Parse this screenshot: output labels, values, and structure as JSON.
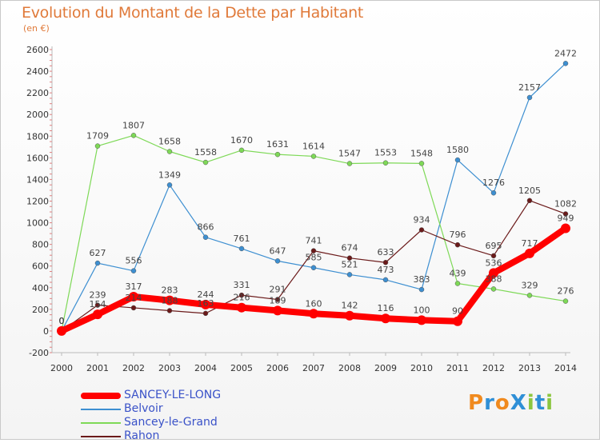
{
  "title": "Evolution du Montant de la Dette par Habitant",
  "subtitle": "(en €)",
  "logo": {
    "text": "ProXiti",
    "letters": [
      "P",
      "r",
      "o",
      "X",
      "i",
      "t",
      "i"
    ],
    "colors": [
      "#f08a1e",
      "#2f8fd6",
      "#f08a1e",
      "#2f8fd6",
      "#8cc63f",
      "#2f8fd6",
      "#8cc63f"
    ]
  },
  "chart_data": {
    "type": "line",
    "x": [
      "2000",
      "2001",
      "2002",
      "2003",
      "2004",
      "2005",
      "2006",
      "2007",
      "2008",
      "2009",
      "2010",
      "2011",
      "2012",
      "2013",
      "2014"
    ],
    "ylim": [
      -200,
      2600
    ],
    "yticks": [
      -200,
      0,
      200,
      400,
      600,
      800,
      1000,
      1200,
      1400,
      1600,
      1800,
      2000,
      2200,
      2400,
      2600
    ],
    "grid": false,
    "legend_position": "bottom-left",
    "series": [
      {
        "name": "SANCEY-LE-LONG",
        "color": "#ff0000",
        "values": [
          0,
          154,
          317,
          283,
          244,
          216,
          189,
          160,
          142,
          116,
          100,
          90,
          536,
          717,
          949
        ],
        "labels": [
          "0",
          "154",
          "317",
          "283",
          "244",
          "216",
          "189",
          "160",
          "142",
          "116",
          "100",
          "90",
          "536",
          "717",
          "949"
        ]
      },
      {
        "name": "Belvoir",
        "color": "#3d8fd1",
        "values": [
          0,
          627,
          556,
          1349,
          866,
          761,
          647,
          585,
          521,
          473,
          383,
          1580,
          1276,
          2157,
          2472
        ],
        "labels": [
          "0",
          "627",
          "556",
          "1349",
          "866",
          "761",
          "647",
          "585",
          "521",
          "473",
          "383",
          "1580",
          "1276",
          "2157",
          "2472"
        ]
      },
      {
        "name": "Sancey-le-Grand",
        "color": "#7ed957",
        "values": [
          0,
          1709,
          1807,
          1658,
          1558,
          1670,
          1631,
          1614,
          1547,
          1553,
          1548,
          439,
          388,
          329,
          276
        ],
        "labels": [
          "0",
          "1709",
          "1807",
          "1658",
          "1558",
          "1670",
          "1631",
          "1614",
          "1547",
          "1553",
          "1548",
          "439",
          "388",
          "329",
          "276"
        ]
      },
      {
        "name": "Rahon",
        "color": "#6b1a1a",
        "values": [
          0,
          239,
          214,
          188,
          163,
          331,
          291,
          741,
          674,
          633,
          934,
          796,
          695,
          1205,
          1082
        ],
        "labels": [
          "0",
          "239",
          "214",
          "188",
          "163",
          "331",
          "291",
          "741",
          "674",
          "633",
          "934",
          "796",
          "695",
          "1205",
          "1082"
        ]
      }
    ]
  }
}
